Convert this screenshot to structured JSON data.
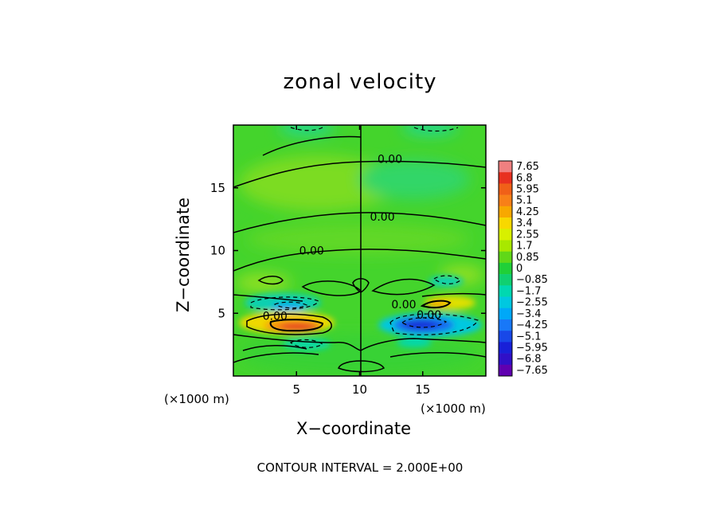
{
  "chart_data": {
    "type": "heatmap",
    "title": "zonal velocity",
    "xlabel": "X−coordinate",
    "ylabel": "Z−coordinate",
    "x_unit": "(×1000 m)",
    "y_unit": "(×1000 m)",
    "xlim": [
      0,
      20
    ],
    "ylim": [
      0,
      20
    ],
    "x_ticks": [
      "5",
      "10",
      "15"
    ],
    "x_tick_values": [
      5,
      10,
      15
    ],
    "y_ticks": [
      "5",
      "10",
      "15"
    ],
    "y_tick_values": [
      5,
      10,
      15
    ],
    "footer": "CONTOUR INTERVAL = 2.000E+00",
    "colorbar": {
      "labels": [
        "7.65",
        "6.8",
        "5.95",
        "5.1",
        "4.25",
        "3.4",
        "2.55",
        "1.7",
        "0.85",
        "0",
        "−0.85",
        "−1.7",
        "−2.55",
        "−3.4",
        "−4.25",
        "−5.1",
        "−5.95",
        "−6.8",
        "−7.65"
      ],
      "colors": [
        "#f08080",
        "#e83020",
        "#f06018",
        "#f88018",
        "#f8a800",
        "#f8d800",
        "#d8f000",
        "#a8e800",
        "#60d818",
        "#20d038",
        "#10d070",
        "#00d8b0",
        "#00c8e0",
        "#00a8f8",
        "#1878f8",
        "#1848e8",
        "#1820d8",
        "#3010c8",
        "#6000b0"
      ]
    },
    "contour_labels": [
      {
        "text": "0.00",
        "x": 12.4,
        "z": 17.3
      },
      {
        "text": "0.00",
        "x": 11.8,
        "z": 12.7
      },
      {
        "text": "0.00",
        "x": 6.2,
        "z": 10.0
      },
      {
        "text": "0.00",
        "x": 3.3,
        "z": 4.8
      },
      {
        "text": "0.00",
        "x": 13.5,
        "z": 5.7
      },
      {
        "text": "0.00",
        "x": 15.5,
        "z": 4.9
      }
    ],
    "features": [
      {
        "sign": "positive",
        "x": 5.6,
        "z": 4.1,
        "peak": 7.0
      },
      {
        "sign": "positive",
        "x": 15.6,
        "z": 5.5,
        "peak": 4.0
      },
      {
        "sign": "negative",
        "x": 15.2,
        "z": 4.3,
        "peak": -5.5
      },
      {
        "sign": "negative",
        "x": 4.8,
        "z": 5.6,
        "peak": -3.0
      }
    ]
  }
}
